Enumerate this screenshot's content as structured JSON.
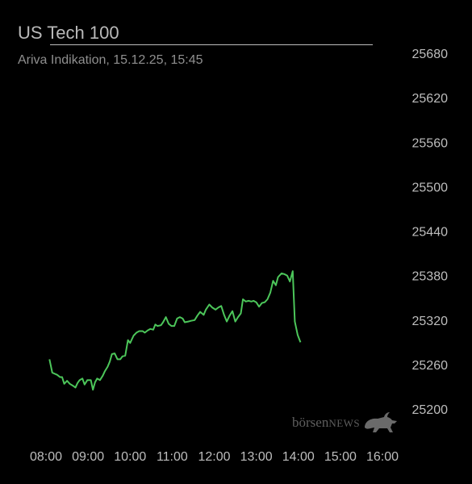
{
  "header": {
    "title": "US Tech 100",
    "subtitle": "Ariva Indikation, 15.12.25, 15:45"
  },
  "watermark": {
    "text_a": "börsen",
    "text_b": "NEWS",
    "icon": "bull-icon"
  },
  "colors": {
    "background": "#000000",
    "line": "#4cc65a",
    "text": "#b9b9b9"
  },
  "chart_data": {
    "type": "line",
    "title": "US Tech 100",
    "subtitle": "Ariva Indikation, 15.12.25, 15:45",
    "xlabel": "",
    "ylabel": "",
    "x_ticks": [
      "08:00",
      "09:00",
      "10:00",
      "11:00",
      "12:00",
      "13:00",
      "14:00",
      "15:00",
      "16:00"
    ],
    "y_ticks": [
      25200,
      25260,
      25320,
      25380,
      25440,
      25500,
      25560,
      25620,
      25680
    ],
    "ylim": [
      25200,
      25680
    ],
    "xlim": [
      "08:00",
      "16:00"
    ],
    "y_axis_side": "right",
    "grid": false,
    "legend": "none",
    "series": [
      {
        "points": [
          [
            "08:05",
            25267
          ],
          [
            "08:09",
            25249
          ],
          [
            "08:16",
            25246
          ],
          [
            "08:20",
            25243
          ],
          [
            "08:23",
            25243
          ],
          [
            "08:26",
            25234
          ],
          [
            "08:30",
            25238
          ],
          [
            "08:34",
            25234
          ],
          [
            "08:39",
            25231
          ],
          [
            "08:42",
            25229
          ],
          [
            "08:45",
            25235
          ],
          [
            "08:48",
            25239
          ],
          [
            "08:52",
            25241
          ],
          [
            "08:55",
            25233
          ],
          [
            "08:59",
            25239
          ],
          [
            "09:04",
            25239
          ],
          [
            "09:07",
            25226
          ],
          [
            "09:10",
            25236
          ],
          [
            "09:13",
            25241
          ],
          [
            "09:17",
            25239
          ],
          [
            "09:21",
            25245
          ],
          [
            "09:24",
            25251
          ],
          [
            "09:28",
            25257
          ],
          [
            "09:31",
            25264
          ],
          [
            "09:34",
            25274
          ],
          [
            "09:38",
            25275
          ],
          [
            "09:42",
            25267
          ],
          [
            "09:46",
            25267
          ],
          [
            "09:49",
            25271
          ],
          [
            "09:53",
            25272
          ],
          [
            "09:57",
            25293
          ],
          [
            "10:00",
            25289
          ],
          [
            "10:05",
            25299
          ],
          [
            "10:09",
            25303
          ],
          [
            "10:13",
            25305
          ],
          [
            "10:18",
            25305
          ],
          [
            "10:21",
            25303
          ],
          [
            "10:25",
            25306
          ],
          [
            "10:29",
            25308
          ],
          [
            "10:33",
            25307
          ],
          [
            "10:36",
            25314
          ],
          [
            "10:39",
            25312
          ],
          [
            "10:44",
            25313
          ],
          [
            "10:47",
            25317
          ],
          [
            "10:51",
            25324
          ],
          [
            "10:55",
            25315
          ],
          [
            "10:59",
            25312
          ],
          [
            "11:03",
            25312
          ],
          [
            "11:07",
            25322
          ],
          [
            "11:11",
            25324
          ],
          [
            "11:15",
            25322
          ],
          [
            "11:18",
            25317
          ],
          [
            "11:23",
            25318
          ],
          [
            "11:27",
            25319
          ],
          [
            "11:32",
            25320
          ],
          [
            "11:36",
            25326
          ],
          [
            "11:40",
            25331
          ],
          [
            "11:45",
            25327
          ],
          [
            "11:48",
            25334
          ],
          [
            "11:53",
            25341
          ],
          [
            "11:57",
            25337
          ],
          [
            "12:02",
            25334
          ],
          [
            "12:06",
            25337
          ],
          [
            "12:10",
            25339
          ],
          [
            "12:14",
            25327
          ],
          [
            "12:18",
            25318
          ],
          [
            "12:22",
            25326
          ],
          [
            "12:26",
            25332
          ],
          [
            "12:30",
            25318
          ],
          [
            "12:34",
            25324
          ],
          [
            "12:38",
            25329
          ],
          [
            "12:41",
            25348
          ],
          [
            "12:45",
            25345
          ],
          [
            "12:49",
            25346
          ],
          [
            "12:53",
            25345
          ],
          [
            "12:56",
            25346
          ],
          [
            "13:00",
            25344
          ],
          [
            "13:04",
            25338
          ],
          [
            "13:08",
            25343
          ],
          [
            "13:12",
            25344
          ],
          [
            "13:16",
            25348
          ],
          [
            "13:20",
            25357
          ],
          [
            "13:24",
            25373
          ],
          [
            "13:28",
            25367
          ],
          [
            "13:31",
            25378
          ],
          [
            "13:36",
            25383
          ],
          [
            "13:40",
            25382
          ],
          [
            "13:44",
            25380
          ],
          [
            "13:48",
            25372
          ],
          [
            "13:52",
            25386
          ],
          [
            "13:55",
            25318
          ],
          [
            "13:59",
            25300
          ],
          [
            "14:03",
            25290
          ]
        ]
      }
    ]
  }
}
